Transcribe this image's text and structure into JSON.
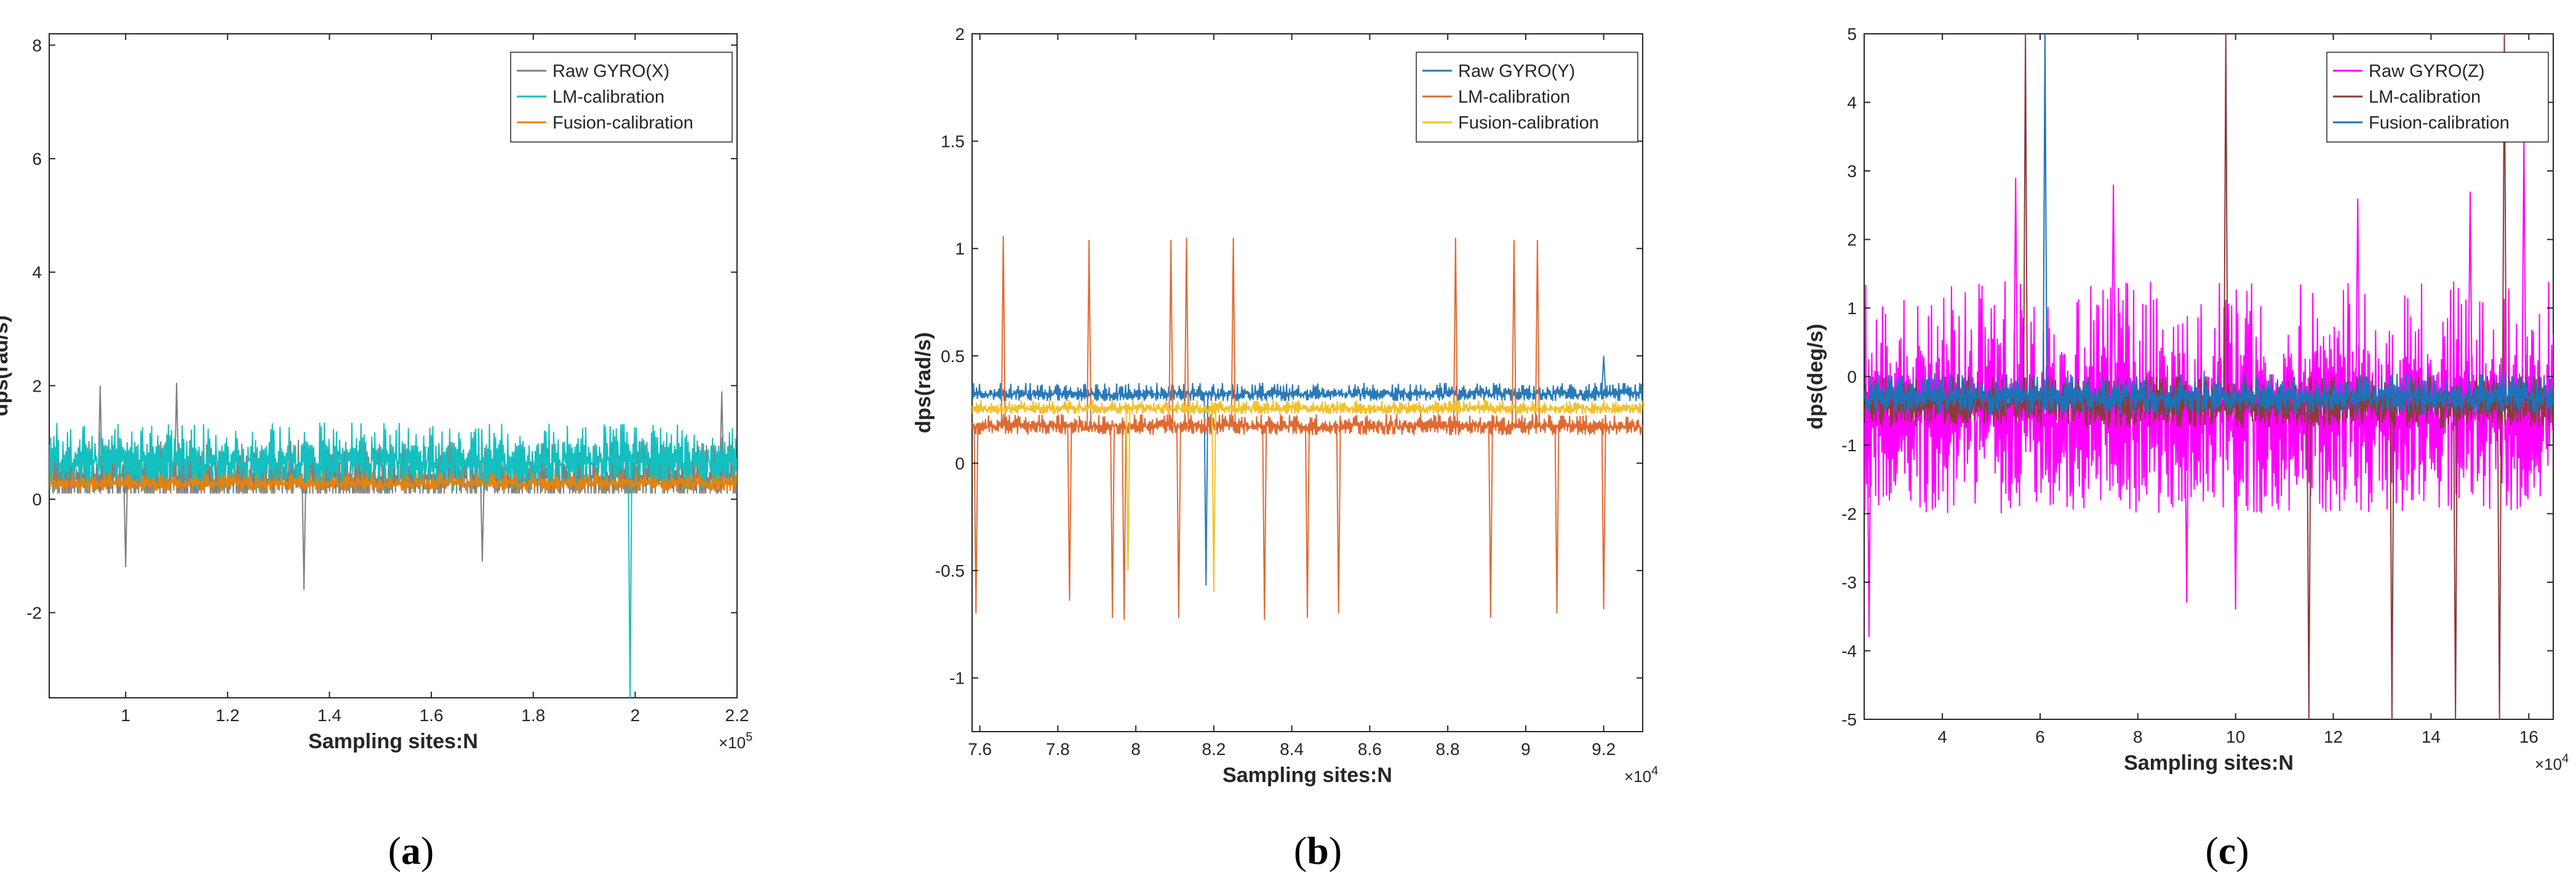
{
  "figure_labels": [
    "a",
    "b",
    "c"
  ],
  "chart_data": [
    {
      "type": "line",
      "panel": "a",
      "xlabel": "Sampling sites:N",
      "ylabel": "dps(rad/s)",
      "xlim": [
        0.85,
        2.2
      ],
      "ylim": [
        -3.5,
        8.2
      ],
      "x_multiplier": "10",
      "x_exponent": "5",
      "xticks": [
        1,
        1.2,
        1.4,
        1.6,
        1.8,
        2,
        2.2
      ],
      "xtick_labels": [
        "1",
        "1.2",
        "1.4",
        "1.6",
        "1.8",
        "2",
        "2.2"
      ],
      "yticks": [
        -2,
        0,
        2,
        4,
        6,
        8
      ],
      "ytick_labels": [
        "-2",
        "0",
        "2",
        "4",
        "6",
        "8"
      ],
      "legend_position": "top-right",
      "series": [
        {
          "name": "Raw GYRO(X)",
          "color": "#7f7f7f",
          "center": 0.45,
          "band": [
            0.1,
            1.3
          ],
          "spikes": [
            [
              0.95,
              2.0
            ],
            [
              1.1,
              2.05
            ],
            [
              1.35,
              -1.6
            ],
            [
              1.0,
              -1.2
            ],
            [
              1.7,
              -1.1
            ],
            [
              2.17,
              1.9
            ]
          ]
        },
        {
          "name": "LM-calibration",
          "color": "#14bfbf",
          "center": 0.75,
          "band": [
            0.15,
            1.35
          ],
          "spikes": [
            [
              1.99,
              -3.5
            ]
          ]
        },
        {
          "name": "Fusion-calibration",
          "color": "#e6820e",
          "center": 0.3,
          "band": [
            0.15,
            0.5
          ],
          "spikes": []
        }
      ]
    },
    {
      "type": "line",
      "panel": "b",
      "xlabel": "Sampling sites:N",
      "ylabel": "dps(rad/s)",
      "xlim": [
        7.58,
        9.3
      ],
      "ylim": [
        -1.25,
        2
      ],
      "x_multiplier": "10",
      "x_exponent": "4",
      "xticks": [
        7.6,
        7.8,
        8,
        8.2,
        8.4,
        8.6,
        8.8,
        9,
        9.2
      ],
      "xtick_labels": [
        "7.6",
        "7.8",
        "8",
        "8.2",
        "8.4",
        "8.6",
        "8.8",
        "9",
        "9.2"
      ],
      "yticks": [
        -1,
        -0.5,
        0,
        0.5,
        1,
        1.5,
        2
      ],
      "ytick_labels": [
        "-1",
        "-0.5",
        "0",
        "0.5",
        "1",
        "1.5",
        "2"
      ],
      "legend_position": "top-right",
      "series": [
        {
          "name": "Raw GYRO(Y)",
          "color": "#2a7ab8",
          "center": 0.33,
          "band": [
            0.29,
            0.38
          ],
          "spikes": [
            [
              8.18,
              -0.57
            ],
            [
              9.2,
              0.5
            ]
          ]
        },
        {
          "name": "LM-calibration",
          "color": "#e06a32",
          "center": 0.18,
          "band": [
            0.13,
            0.23
          ],
          "spikes": [
            [
              7.66,
              1.06
            ],
            [
              7.88,
              1.04
            ],
            [
              8.09,
              1.04
            ],
            [
              8.13,
              1.05
            ],
            [
              8.25,
              1.05
            ],
            [
              8.82,
              1.05
            ],
            [
              8.97,
              1.04
            ],
            [
              9.03,
              1.04
            ],
            [
              7.59,
              -0.7
            ],
            [
              7.83,
              -0.64
            ],
            [
              7.94,
              -0.72
            ],
            [
              7.97,
              -0.73
            ],
            [
              8.11,
              -0.72
            ],
            [
              8.33,
              -0.73
            ],
            [
              8.44,
              -0.72
            ],
            [
              8.52,
              -0.7
            ],
            [
              8.91,
              -0.72
            ],
            [
              9.08,
              -0.7
            ],
            [
              9.2,
              -0.68
            ]
          ]
        },
        {
          "name": "Fusion-calibration",
          "color": "#f2c12e",
          "center": 0.26,
          "band": [
            0.23,
            0.3
          ],
          "spikes": [
            [
              7.98,
              -0.5
            ],
            [
              8.2,
              -0.6
            ]
          ]
        }
      ]
    },
    {
      "type": "line",
      "panel": "c",
      "xlabel": "Sampling sites:N",
      "ylabel": "dps(deg/s)",
      "xlim": [
        2.4,
        16.5
      ],
      "ylim": [
        -5,
        5
      ],
      "x_multiplier": "10",
      "x_exponent": "4",
      "xticks": [
        4,
        6,
        8,
        10,
        12,
        14,
        16
      ],
      "xtick_labels": [
        "4",
        "6",
        "8",
        "10",
        "12",
        "14",
        "16"
      ],
      "yticks": [
        -5,
        -4,
        -3,
        -2,
        -1,
        0,
        1,
        2,
        3,
        4,
        5
      ],
      "ytick_labels": [
        "-5",
        "-4",
        "-3",
        "-2",
        "-1",
        "0",
        "1",
        "2",
        "3",
        "4",
        "5"
      ],
      "legend_position": "top-right",
      "series": [
        {
          "name": "Raw GYRO(Z)",
          "color": "#ff00ff",
          "center": -0.3,
          "band": [
            -2.0,
            1.4
          ],
          "spikes": [
            [
              2.5,
              -3.8
            ],
            [
              5.5,
              2.9
            ],
            [
              7.5,
              2.8
            ],
            [
              10.0,
              -3.4
            ],
            [
              12.5,
              2.6
            ],
            [
              14.8,
              2.7
            ],
            [
              15.9,
              3.5
            ],
            [
              9.0,
              -3.3
            ]
          ]
        },
        {
          "name": "LM-calibration",
          "color": "#8b3a3a",
          "center": -0.35,
          "band": [
            -0.8,
            0.0
          ],
          "spikes": [
            [
              5.7,
              5
            ],
            [
              9.8,
              5
            ],
            [
              15.5,
              5
            ],
            [
              11.5,
              -5
            ],
            [
              13.2,
              -5
            ],
            [
              14.5,
              -5
            ],
            [
              15.4,
              -5
            ]
          ]
        },
        {
          "name": "Fusion-calibration",
          "color": "#1f72b8",
          "center": -0.25,
          "band": [
            -0.55,
            0.05
          ],
          "spikes": [
            [
              6.1,
              5
            ]
          ]
        }
      ]
    }
  ]
}
